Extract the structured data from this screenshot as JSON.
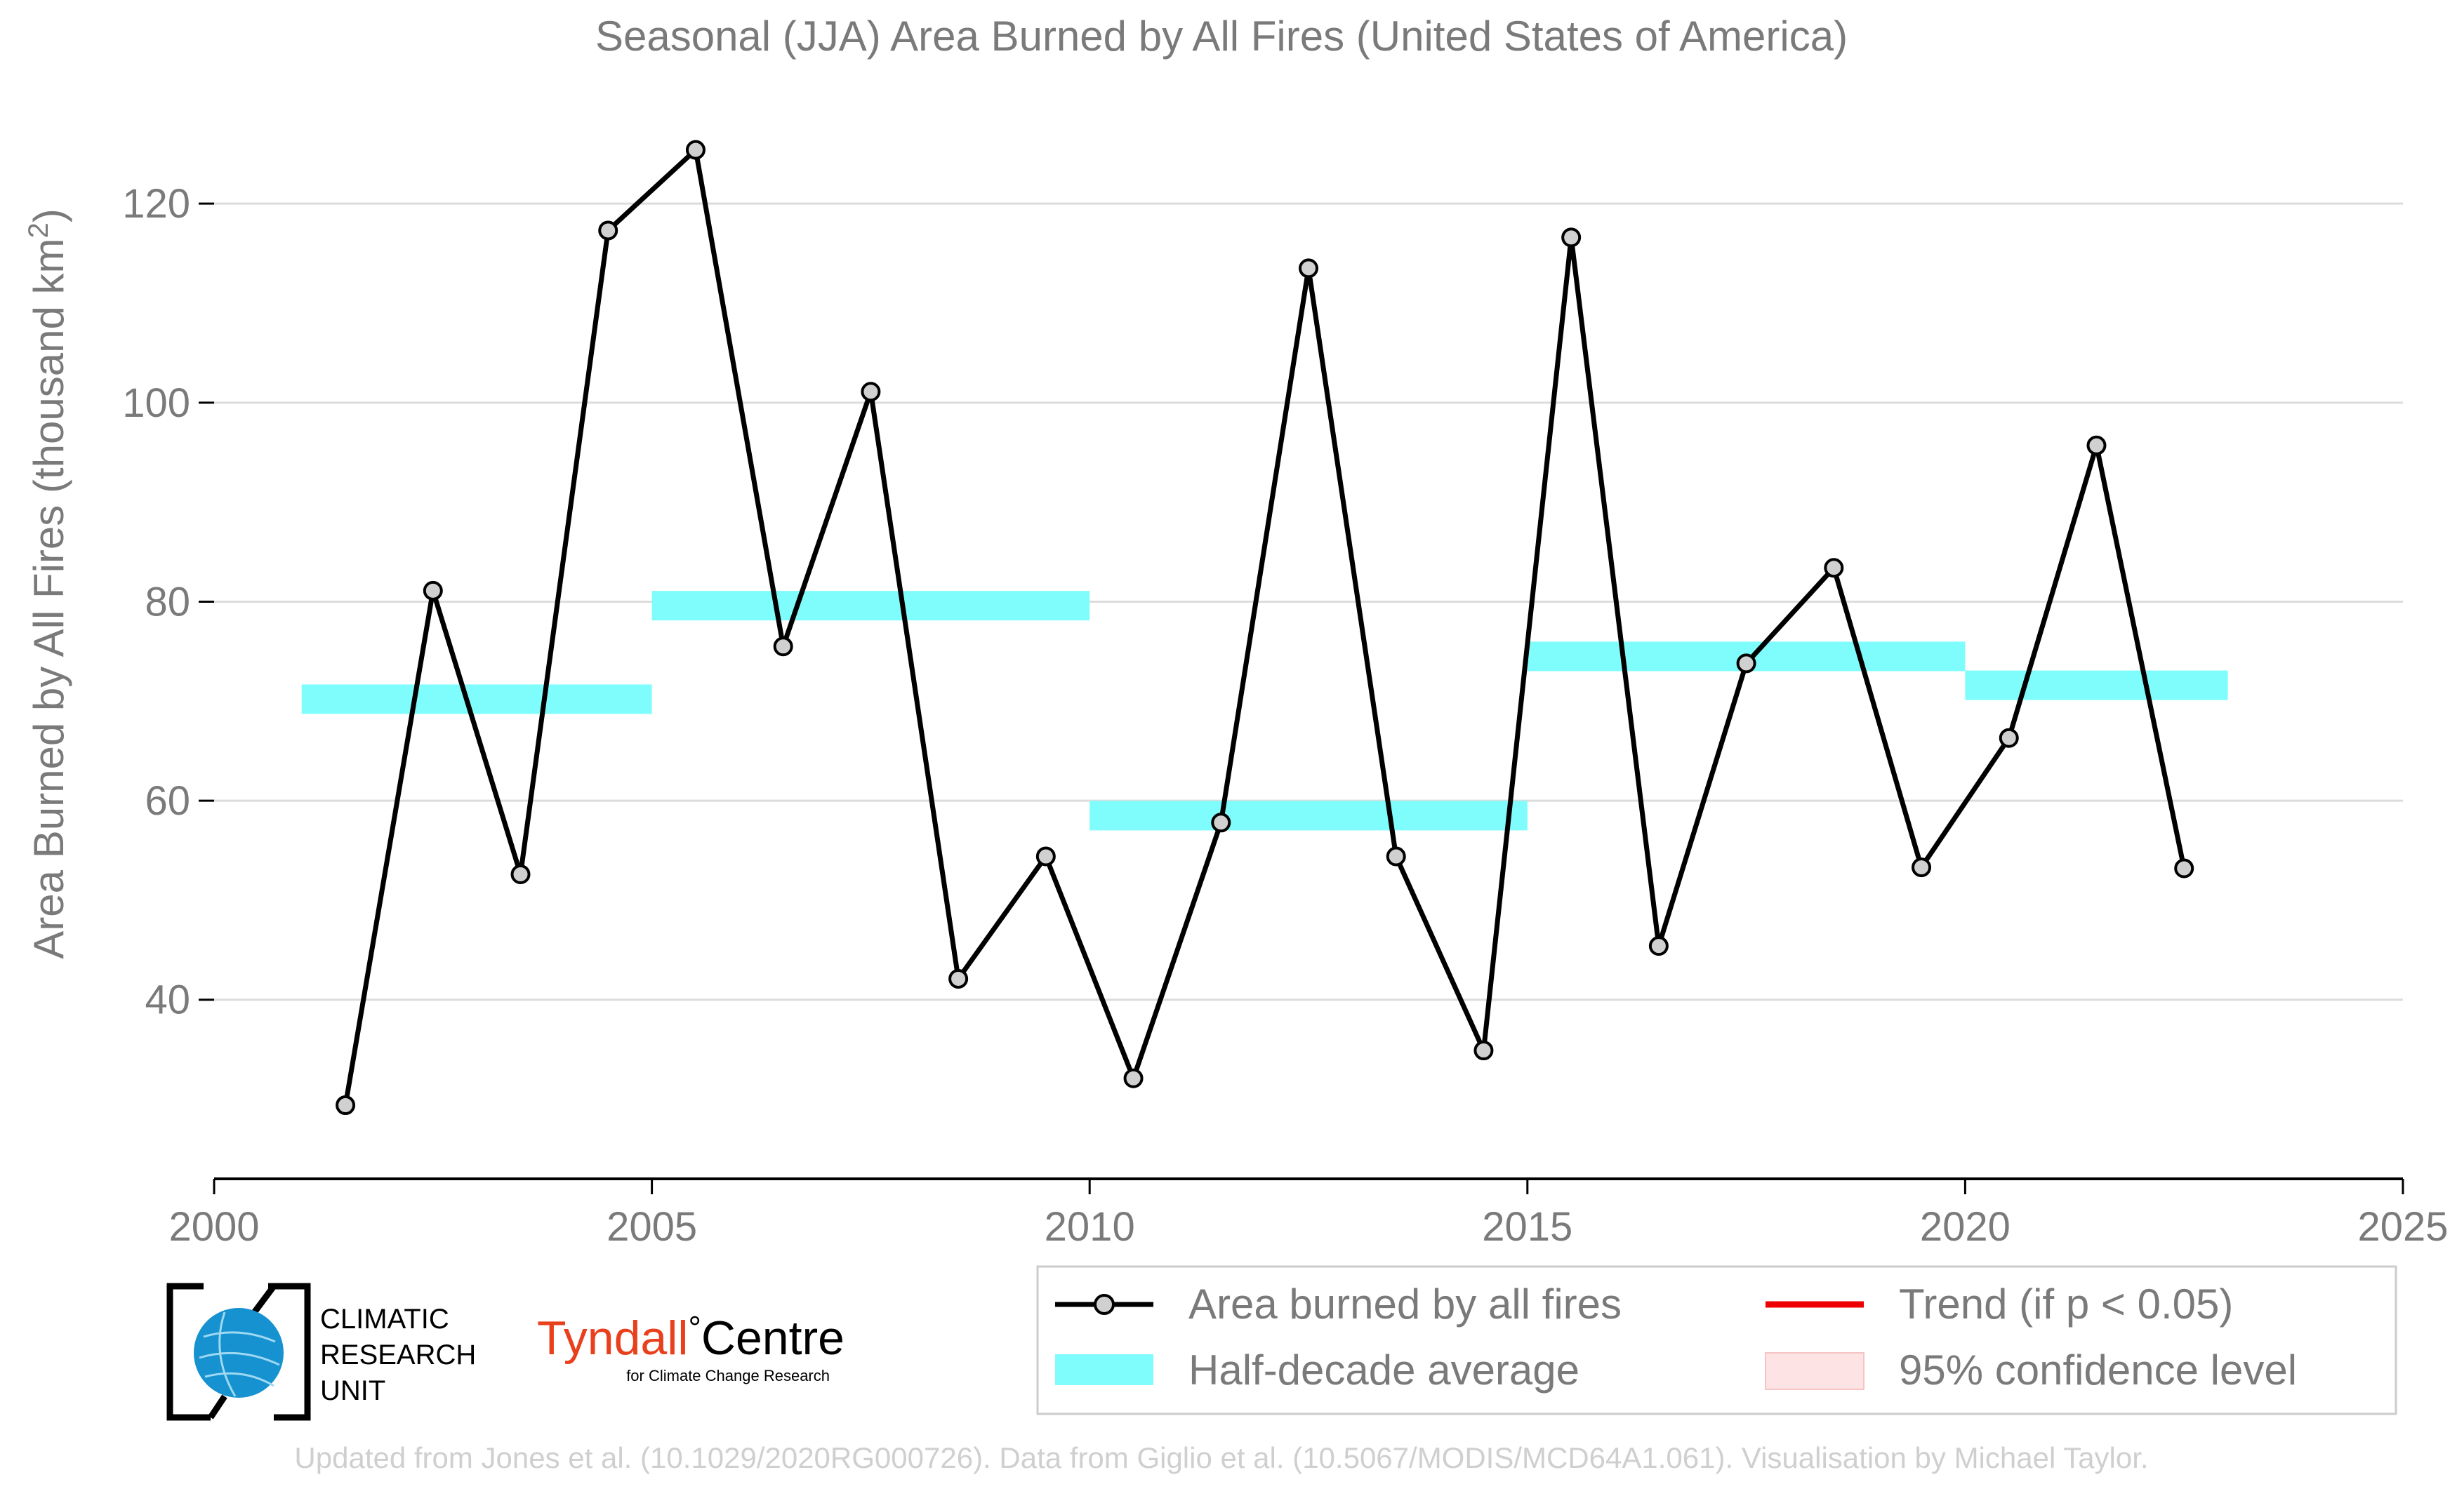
{
  "chart_data": {
    "type": "line",
    "title": "Seasonal (JJA) Area Burned by All Fires (United States of America)",
    "ylabel_main": "Area Burned by All Fires (thousand km",
    "ylabel_sup": "2",
    "ylabel_end": ")",
    "xlabel": "",
    "xlim": [
      2000,
      2025
    ],
    "ylim": [
      22,
      132
    ],
    "x_ticks": [
      2000,
      2005,
      2010,
      2015,
      2020,
      2025
    ],
    "y_ticks": [
      40,
      60,
      80,
      100,
      120
    ],
    "grid": "horizontal",
    "legend_position": "bottom-right",
    "series": [
      {
        "name": "Area burned by all fires",
        "color": "#000000",
        "marker_fill": "#d0d0d0",
        "x": [
          2001.5,
          2002.5,
          2003.5,
          2004.5,
          2005.5,
          2006.5,
          2007.5,
          2008.5,
          2009.5,
          2010.5,
          2011.5,
          2012.5,
          2013.5,
          2014.5,
          2015.5,
          2016.5,
          2017.5,
          2018.5,
          2019.5,
          2020.5,
          2021.5,
          2022.5
        ],
        "values": [
          29.4,
          81.1,
          52.6,
          117.3,
          125.4,
          75.5,
          101.1,
          42.1,
          54.4,
          32.1,
          57.8,
          113.5,
          54.4,
          34.9,
          116.6,
          45.4,
          73.8,
          83.4,
          53.3,
          66.3,
          95.7,
          53.2
        ]
      }
    ],
    "half_decade_average": {
      "name": "Half-decade average",
      "color": "#7ffcfc",
      "segments": [
        {
          "x0": 2001,
          "x1": 2005,
          "value": 70.2
        },
        {
          "x0": 2005,
          "x1": 2010,
          "value": 79.6
        },
        {
          "x0": 2010,
          "x1": 2015,
          "value": 58.5
        },
        {
          "x0": 2015,
          "x1": 2020,
          "value": 74.5
        },
        {
          "x0": 2020,
          "x1": 2023,
          "value": 71.6
        }
      ]
    },
    "legend": [
      {
        "key": "line",
        "label": "Area burned by all fires"
      },
      {
        "key": "halfdecade",
        "label": "Half-decade average"
      },
      {
        "key": "trend",
        "label": "Trend (if p < 0.05)"
      },
      {
        "key": "ci",
        "label": "95% confidence level"
      }
    ],
    "colors": {
      "axis_text": "#7a7a7a",
      "grid": "#dcdcdc",
      "trend": "#ee0000",
      "ci": "#fde3e3",
      "footer": "#cfcfcf"
    }
  },
  "logos": {
    "cru": [
      "CLIMATIC",
      "RESEARCH",
      "UNIT"
    ],
    "tyndall_main": "Tyndall",
    "tyndall_degree": "°",
    "tyndall_centre": "Centre",
    "tyndall_sub": "for Climate Change Research"
  },
  "footer": "Updated from Jones et al. (10.1029/2020RG000726). Data from Giglio et al. (10.5067/MODIS/MCD64A1.061). Visualisation by Michael Taylor."
}
